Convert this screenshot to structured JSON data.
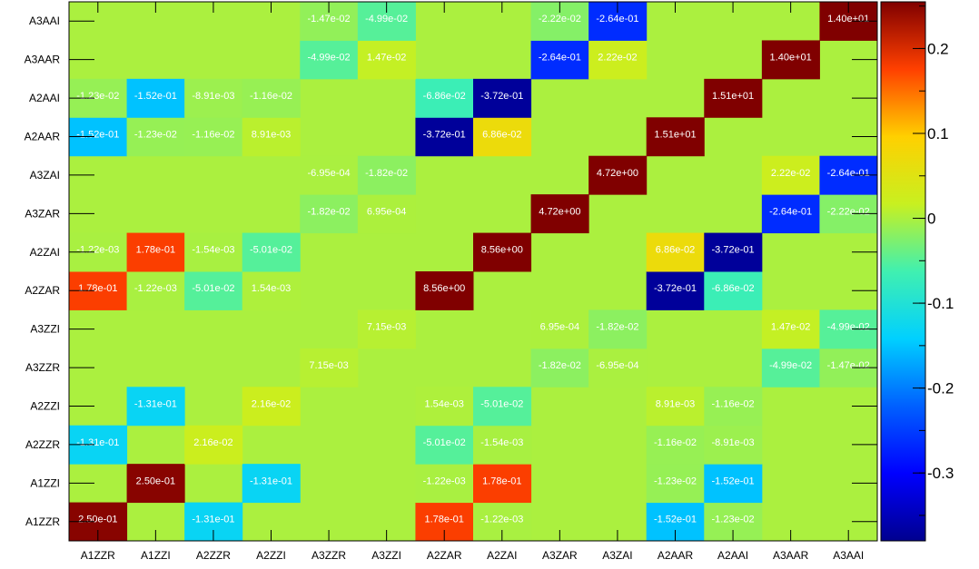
{
  "chart_data": {
    "type": "heatmap",
    "title": "",
    "xlabel": "",
    "ylabel": "",
    "x_categories": [
      "A1ZZR",
      "A1ZZI",
      "A2ZZR",
      "A2ZZI",
      "A3ZZR",
      "A3ZZI",
      "A2ZAR",
      "A2ZAI",
      "A3ZAR",
      "A3ZAI",
      "A2AAR",
      "A2AAI",
      "A3AAR",
      "A3AAI"
    ],
    "y_categories": [
      "A1ZZR",
      "A1ZZI",
      "A2ZZR",
      "A2ZZI",
      "A3ZZR",
      "A3ZZI",
      "A2ZAR",
      "A2ZAI",
      "A3ZAR",
      "A3ZAI",
      "A2AAR",
      "A2AAI",
      "A3AAR",
      "A3AAI"
    ],
    "zlim": [
      -0.38,
      0.255
    ],
    "colorbar_ticks": [
      "0.2",
      "0.1",
      "0",
      "-0.1",
      "-0.2",
      "-0.3"
    ],
    "colorbar_tick_values": [
      0.2,
      0.1,
      0,
      -0.1,
      -0.2,
      -0.3
    ],
    "colormap": "rainbow",
    "cells": [
      {
        "x": "A1ZZR",
        "y": "A1ZZR",
        "value": 0.25,
        "label": "2.50e-01"
      },
      {
        "x": "A2ZZR",
        "y": "A1ZZR",
        "value": -0.131,
        "label": "-1.31e-01"
      },
      {
        "x": "A2ZAR",
        "y": "A1ZZR",
        "value": 0.178,
        "label": "1.78e-01"
      },
      {
        "x": "A2ZAI",
        "y": "A1ZZR",
        "value": -0.00122,
        "label": "-1.22e-03"
      },
      {
        "x": "A2AAR",
        "y": "A1ZZR",
        "value": -0.152,
        "label": "-1.52e-01"
      },
      {
        "x": "A2AAI",
        "y": "A1ZZR",
        "value": -0.0123,
        "label": "-1.23e-02"
      },
      {
        "x": "A1ZZI",
        "y": "A1ZZI",
        "value": 0.25,
        "label": "2.50e-01"
      },
      {
        "x": "A2ZZI",
        "y": "A1ZZI",
        "value": -0.131,
        "label": "-1.31e-01"
      },
      {
        "x": "A2ZAR",
        "y": "A1ZZI",
        "value": -0.00122,
        "label": "-1.22e-03"
      },
      {
        "x": "A2ZAI",
        "y": "A1ZZI",
        "value": 0.178,
        "label": "1.78e-01"
      },
      {
        "x": "A2AAR",
        "y": "A1ZZI",
        "value": -0.0123,
        "label": "-1.23e-02"
      },
      {
        "x": "A2AAI",
        "y": "A1ZZI",
        "value": -0.152,
        "label": "-1.52e-01"
      },
      {
        "x": "A1ZZR",
        "y": "A2ZZR",
        "value": -0.131,
        "label": "-1.31e-01"
      },
      {
        "x": "A2ZZR",
        "y": "A2ZZR",
        "value": 0.0216,
        "label": "2.16e-02"
      },
      {
        "x": "A2ZAR",
        "y": "A2ZZR",
        "value": -0.0501,
        "label": "-5.01e-02"
      },
      {
        "x": "A2ZAI",
        "y": "A2ZZR",
        "value": -0.00154,
        "label": "-1.54e-03"
      },
      {
        "x": "A2AAR",
        "y": "A2ZZR",
        "value": -0.0116,
        "label": "-1.16e-02"
      },
      {
        "x": "A2AAI",
        "y": "A2ZZR",
        "value": -0.00891,
        "label": "-8.91e-03"
      },
      {
        "x": "A1ZZI",
        "y": "A2ZZI",
        "value": -0.131,
        "label": "-1.31e-01"
      },
      {
        "x": "A2ZZI",
        "y": "A2ZZI",
        "value": 0.0216,
        "label": "2.16e-02"
      },
      {
        "x": "A2ZAR",
        "y": "A2ZZI",
        "value": 0.00154,
        "label": "1.54e-03"
      },
      {
        "x": "A2ZAI",
        "y": "A2ZZI",
        "value": -0.0501,
        "label": "-5.01e-02"
      },
      {
        "x": "A2AAR",
        "y": "A2ZZI",
        "value": 0.00891,
        "label": "8.91e-03"
      },
      {
        "x": "A2AAI",
        "y": "A2ZZI",
        "value": -0.0116,
        "label": "-1.16e-02"
      },
      {
        "x": "A3ZZR",
        "y": "A3ZZR",
        "value": 0.00715,
        "label": "7.15e-03"
      },
      {
        "x": "A3ZAR",
        "y": "A3ZZR",
        "value": -0.0182,
        "label": "-1.82e-02"
      },
      {
        "x": "A3ZAI",
        "y": "A3ZZR",
        "value": -0.000695,
        "label": "-6.95e-04"
      },
      {
        "x": "A3AAR",
        "y": "A3ZZR",
        "value": -0.0499,
        "label": "-4.99e-02"
      },
      {
        "x": "A3AAI",
        "y": "A3ZZR",
        "value": -0.0147,
        "label": "-1.47e-02"
      },
      {
        "x": "A3ZZI",
        "y": "A3ZZI",
        "value": 0.00715,
        "label": "7.15e-03"
      },
      {
        "x": "A3ZAR",
        "y": "A3ZZI",
        "value": 0.000695,
        "label": "6.95e-04"
      },
      {
        "x": "A3ZAI",
        "y": "A3ZZI",
        "value": -0.0182,
        "label": "-1.82e-02"
      },
      {
        "x": "A3AAR",
        "y": "A3ZZI",
        "value": 0.0147,
        "label": "1.47e-02"
      },
      {
        "x": "A3AAI",
        "y": "A3ZZI",
        "value": -0.0499,
        "label": "-4.99e-02"
      },
      {
        "x": "A1ZZR",
        "y": "A2ZAR",
        "value": 0.178,
        "label": "1.78e-01"
      },
      {
        "x": "A1ZZI",
        "y": "A2ZAR",
        "value": -0.00122,
        "label": "-1.22e-03"
      },
      {
        "x": "A2ZZR",
        "y": "A2ZAR",
        "value": -0.0501,
        "label": "-5.01e-02"
      },
      {
        "x": "A2ZZI",
        "y": "A2ZAR",
        "value": 0.00154,
        "label": "1.54e-03"
      },
      {
        "x": "A2ZAR",
        "y": "A2ZAR",
        "value": 8.56,
        "label": "8.56e+00"
      },
      {
        "x": "A2AAR",
        "y": "A2ZAR",
        "value": -0.372,
        "label": "-3.72e-01"
      },
      {
        "x": "A2AAI",
        "y": "A2ZAR",
        "value": -0.0686,
        "label": "-6.86e-02"
      },
      {
        "x": "A1ZZR",
        "y": "A2ZAI",
        "value": -0.00122,
        "label": "-1.22e-03"
      },
      {
        "x": "A1ZZI",
        "y": "A2ZAI",
        "value": 0.178,
        "label": "1.78e-01"
      },
      {
        "x": "A2ZZR",
        "y": "A2ZAI",
        "value": -0.00154,
        "label": "-1.54e-03"
      },
      {
        "x": "A2ZZI",
        "y": "A2ZAI",
        "value": -0.0501,
        "label": "-5.01e-02"
      },
      {
        "x": "A2ZAI",
        "y": "A2ZAI",
        "value": 8.56,
        "label": "8.56e+00"
      },
      {
        "x": "A2AAR",
        "y": "A2ZAI",
        "value": 0.0686,
        "label": "6.86e-02"
      },
      {
        "x": "A2AAI",
        "y": "A2ZAI",
        "value": -0.372,
        "label": "-3.72e-01"
      },
      {
        "x": "A3ZZR",
        "y": "A3ZAR",
        "value": -0.0182,
        "label": "-1.82e-02"
      },
      {
        "x": "A3ZZI",
        "y": "A3ZAR",
        "value": 0.000695,
        "label": "6.95e-04"
      },
      {
        "x": "A3ZAR",
        "y": "A3ZAR",
        "value": 4.72,
        "label": "4.72e+00"
      },
      {
        "x": "A3AAR",
        "y": "A3ZAR",
        "value": -0.264,
        "label": "-2.64e-01"
      },
      {
        "x": "A3AAI",
        "y": "A3ZAR",
        "value": -0.0222,
        "label": "-2.22e-02"
      },
      {
        "x": "A3ZZR",
        "y": "A3ZAI",
        "value": -0.000695,
        "label": "-6.95e-04"
      },
      {
        "x": "A3ZZI",
        "y": "A3ZAI",
        "value": -0.0182,
        "label": "-1.82e-02"
      },
      {
        "x": "A3ZAI",
        "y": "A3ZAI",
        "value": 4.72,
        "label": "4.72e+00"
      },
      {
        "x": "A3AAR",
        "y": "A3ZAI",
        "value": 0.0222,
        "label": "2.22e-02"
      },
      {
        "x": "A3AAI",
        "y": "A3ZAI",
        "value": -0.264,
        "label": "-2.64e-01"
      },
      {
        "x": "A1ZZR",
        "y": "A2AAR",
        "value": -0.152,
        "label": "-1.52e-01"
      },
      {
        "x": "A1ZZI",
        "y": "A2AAR",
        "value": -0.0123,
        "label": "-1.23e-02"
      },
      {
        "x": "A2ZZR",
        "y": "A2AAR",
        "value": -0.0116,
        "label": "-1.16e-02"
      },
      {
        "x": "A2ZZI",
        "y": "A2AAR",
        "value": 0.00891,
        "label": "8.91e-03"
      },
      {
        "x": "A2ZAR",
        "y": "A2AAR",
        "value": -0.372,
        "label": "-3.72e-01"
      },
      {
        "x": "A2ZAI",
        "y": "A2AAR",
        "value": 0.0686,
        "label": "6.86e-02"
      },
      {
        "x": "A2AAR",
        "y": "A2AAR",
        "value": 15.1,
        "label": "1.51e+01"
      },
      {
        "x": "A1ZZR",
        "y": "A2AAI",
        "value": -0.0123,
        "label": "-1.23e-02"
      },
      {
        "x": "A1ZZI",
        "y": "A2AAI",
        "value": -0.152,
        "label": "-1.52e-01"
      },
      {
        "x": "A2ZZR",
        "y": "A2AAI",
        "value": -0.00891,
        "label": "-8.91e-03"
      },
      {
        "x": "A2ZZI",
        "y": "A2AAI",
        "value": -0.0116,
        "label": "-1.16e-02"
      },
      {
        "x": "A2ZAR",
        "y": "A2AAI",
        "value": -0.0686,
        "label": "-6.86e-02"
      },
      {
        "x": "A2ZAI",
        "y": "A2AAI",
        "value": -0.372,
        "label": "-3.72e-01"
      },
      {
        "x": "A2AAI",
        "y": "A2AAI",
        "value": 15.1,
        "label": "1.51e+01"
      },
      {
        "x": "A3ZZR",
        "y": "A3AAR",
        "value": -0.0499,
        "label": "-4.99e-02"
      },
      {
        "x": "A3ZZI",
        "y": "A3AAR",
        "value": 0.0147,
        "label": "1.47e-02"
      },
      {
        "x": "A3ZAR",
        "y": "A3AAR",
        "value": -0.264,
        "label": "-2.64e-01"
      },
      {
        "x": "A3ZAI",
        "y": "A3AAR",
        "value": 0.0222,
        "label": "2.22e-02"
      },
      {
        "x": "A3AAR",
        "y": "A3AAR",
        "value": 14.0,
        "label": "1.40e+01"
      },
      {
        "x": "A3ZZR",
        "y": "A3AAI",
        "value": -0.0147,
        "label": "-1.47e-02"
      },
      {
        "x": "A3ZZI",
        "y": "A3AAI",
        "value": -0.0499,
        "label": "-4.99e-02"
      },
      {
        "x": "A3ZAR",
        "y": "A3AAI",
        "value": -0.0222,
        "label": "-2.22e-02"
      },
      {
        "x": "A3ZAI",
        "y": "A3AAI",
        "value": -0.264,
        "label": "-2.64e-01"
      },
      {
        "x": "A3AAI",
        "y": "A3AAI",
        "value": 14.0,
        "label": "1.40e+01"
      }
    ]
  }
}
